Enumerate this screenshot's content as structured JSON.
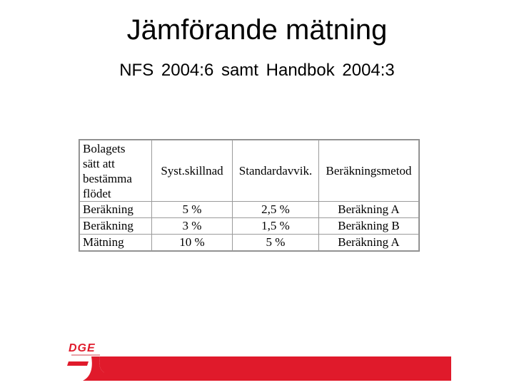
{
  "slide": {
    "title": "Jämförande mätning",
    "subtitle": "NFS 2004:6  samt Handbok 2004:3"
  },
  "table": {
    "headers": [
      "Bolagets\nsätt att\nbestämma\nflödet",
      "Syst.skillnad",
      "Standardavvik.",
      "Beräkningsmetod"
    ],
    "rows": [
      [
        "Beräkning",
        "5 %",
        "2,5 %",
        "Beräkning A"
      ],
      [
        "Beräkning",
        "3 %",
        "1,5 %",
        "Beräkning B"
      ],
      [
        "Mätning",
        "10 %",
        "5 %",
        "Beräkning A"
      ]
    ]
  },
  "logo": {
    "text": "DGE",
    "icon": "dge-logo-icon",
    "accent_color": "#e01a2b"
  }
}
